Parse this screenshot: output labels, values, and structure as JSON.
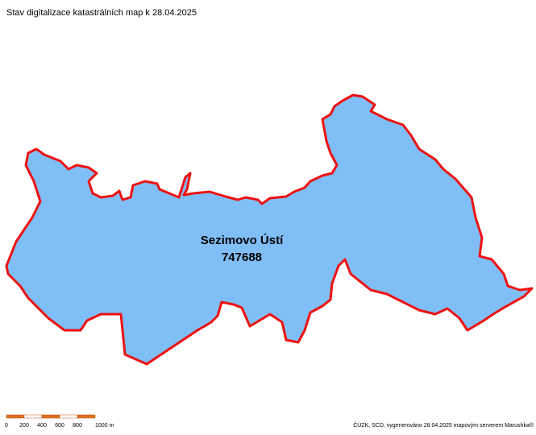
{
  "title": "Stav digitalizace katastrálních map k 28.04.2025",
  "area": {
    "name": "Sezimovo Ústí",
    "code": "747688"
  },
  "scale_bar": {
    "labels": [
      "0",
      "200",
      "400",
      "600",
      "800",
      "1000 m"
    ]
  },
  "credit": "ČÚZK, SCD, vygenerováno 28.04.2025 mapovým serverem Marushka®"
}
